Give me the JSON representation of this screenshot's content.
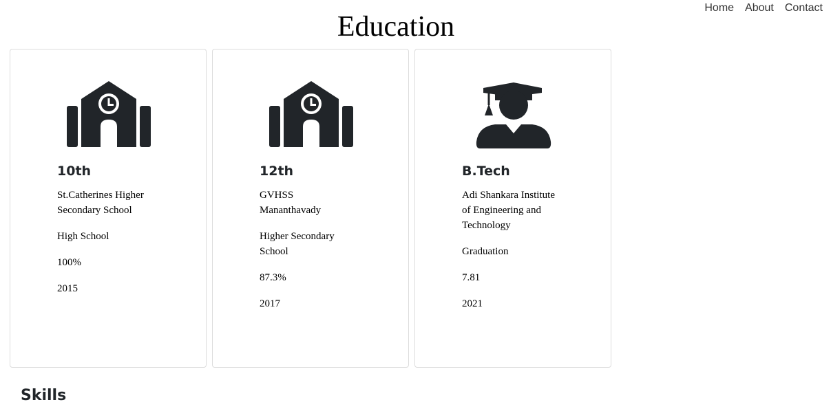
{
  "nav": {
    "items": [
      {
        "label": "Home"
      },
      {
        "label": "About"
      },
      {
        "label": "Contact"
      }
    ]
  },
  "page_title": "Education",
  "education": [
    {
      "icon": "school-icon",
      "title": "10th",
      "institution": "St.Catherines Higher Secondary School",
      "level": "High School",
      "score": "100%",
      "year": "2015"
    },
    {
      "icon": "school-icon",
      "title": "12th",
      "institution": "GVHSS Mananthavady",
      "level": "Higher Secondary School",
      "score": "87.3%",
      "year": "2017"
    },
    {
      "icon": "graduate-icon",
      "title": "B.Tech",
      "institution": "Adi Shankara Institute of Engineering and Technology",
      "level": "Graduation",
      "score": "7.81",
      "year": "2021"
    }
  ],
  "skills_title": "Skills",
  "colors": {
    "icon": "#212529",
    "card_border": "#dcdcdc"
  }
}
